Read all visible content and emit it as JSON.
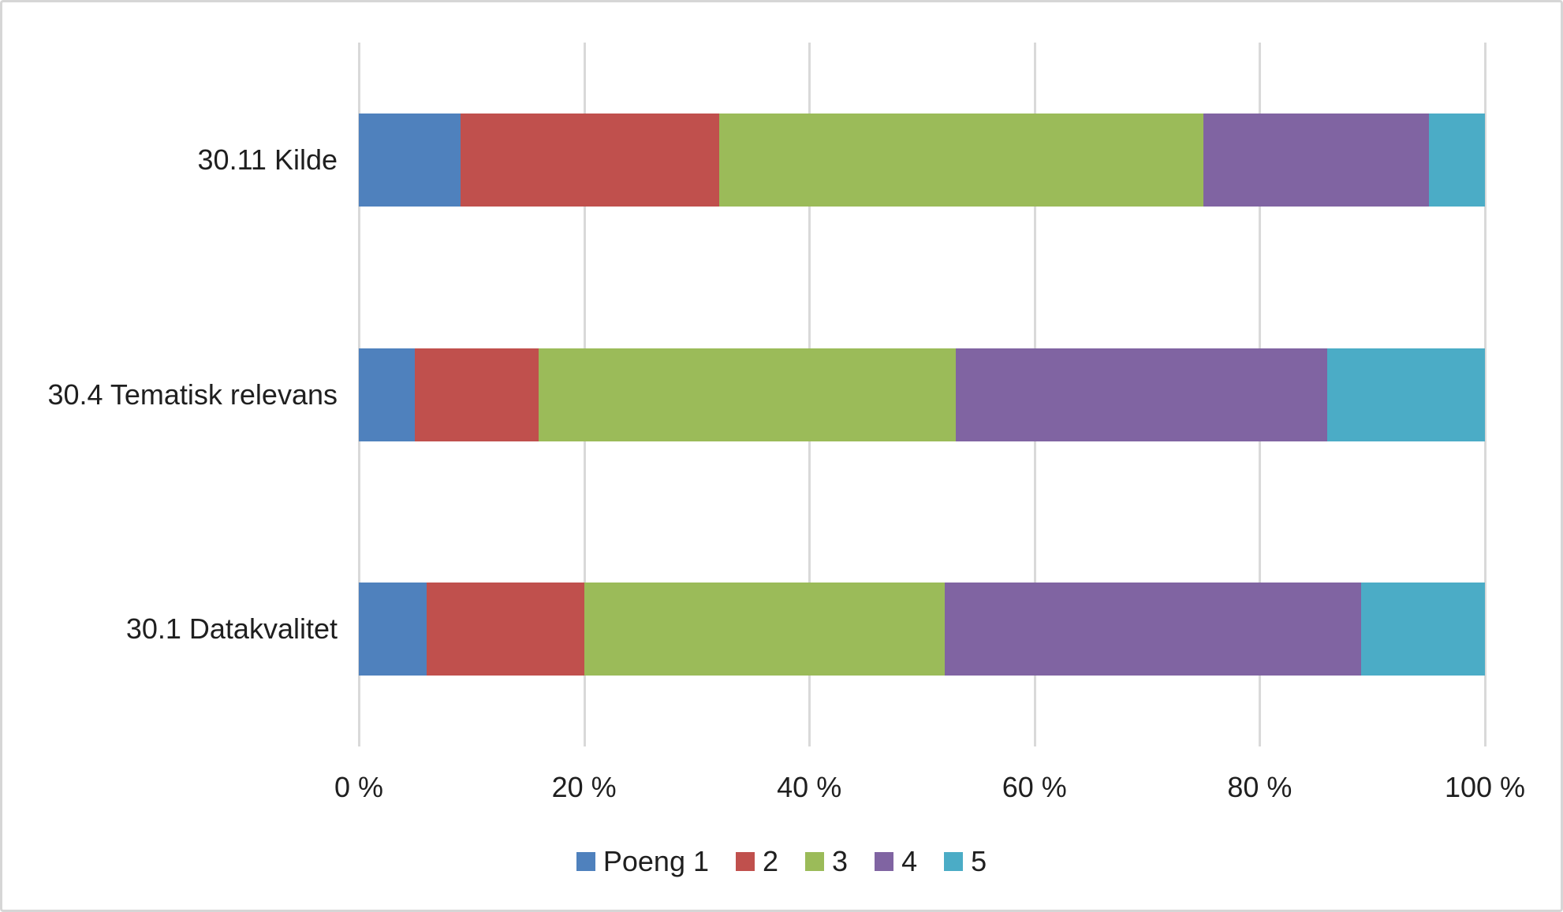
{
  "chart_data": {
    "type": "bar",
    "variant": "horizontal-stacked-100",
    "title": "",
    "xlabel": "",
    "ylabel": "",
    "xlim": [
      0,
      100
    ],
    "grid": "vertical",
    "gridline_color": "#d9d9d9",
    "text_color": "#1f1f1f",
    "background_color": "#ffffff",
    "border_color": "#d6d6d6",
    "categories": [
      "30.11 Kilde",
      "30.4 Tematisk relevans",
      "30.1 Datakvalitet"
    ],
    "x_tick_labels": [
      "0 %",
      "20 %",
      "40 %",
      "60 %",
      "80 %",
      "100 %"
    ],
    "series": [
      {
        "name": "Poeng 1",
        "color": "#4F81BD",
        "values": [
          9,
          5,
          6
        ]
      },
      {
        "name": "2",
        "color": "#C0504D",
        "values": [
          23,
          11,
          14
        ]
      },
      {
        "name": "3",
        "color": "#9BBB59",
        "values": [
          43,
          37,
          32
        ]
      },
      {
        "name": "4",
        "color": "#8064A2",
        "values": [
          20,
          33,
          37
        ]
      },
      {
        "name": "5",
        "color": "#4BACC6",
        "values": [
          5,
          14,
          11
        ]
      }
    ],
    "legend": {
      "position": "bottom-center",
      "labels": [
        "Poeng 1",
        "2",
        "3",
        "4",
        "5"
      ]
    }
  }
}
